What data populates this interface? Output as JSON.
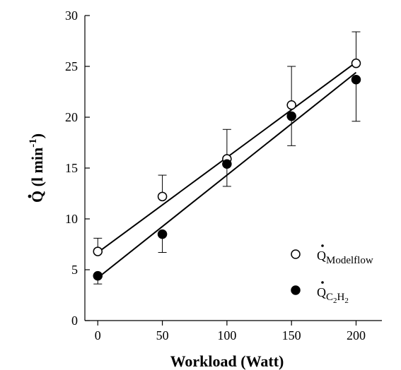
{
  "chart_data": {
    "type": "scatter",
    "title": "",
    "xlabel": "Workload (Watt)",
    "ylabel": {
      "main": "Q (l min",
      "sup": "-1",
      "close": ")"
    },
    "x_ticks": [
      0,
      50,
      100,
      150,
      200
    ],
    "y_ticks": [
      0,
      5,
      10,
      15,
      20,
      25,
      30
    ],
    "xlim": [
      -10,
      220
    ],
    "ylim": [
      0,
      30
    ],
    "grid": false,
    "legend_position": "lower-right",
    "series": [
      {
        "name": "Q",
        "subscript": "Modelflow",
        "marker": "open-circle",
        "x": [
          0,
          50,
          100,
          150,
          200
        ],
        "y": [
          6.8,
          12.2,
          15.9,
          21.2,
          25.3
        ],
        "error_dir": "up",
        "error": [
          1.3,
          2.1,
          2.9,
          3.8,
          3.1
        ],
        "fit": {
          "x": [
            0,
            200
          ],
          "y": [
            6.7,
            25.4
          ]
        }
      },
      {
        "name": "Q",
        "subscript_parts": [
          "C",
          "2",
          "H",
          "2"
        ],
        "marker": "filled-circle",
        "x": [
          0,
          50,
          100,
          150,
          200
        ],
        "y": [
          4.4,
          8.5,
          15.4,
          20.1,
          23.7
        ],
        "error_dir": "down",
        "error": [
          0.8,
          1.8,
          2.2,
          2.9,
          4.1
        ],
        "fit": {
          "x": [
            0,
            200
          ],
          "y": [
            4.2,
            24.4
          ]
        }
      }
    ]
  }
}
